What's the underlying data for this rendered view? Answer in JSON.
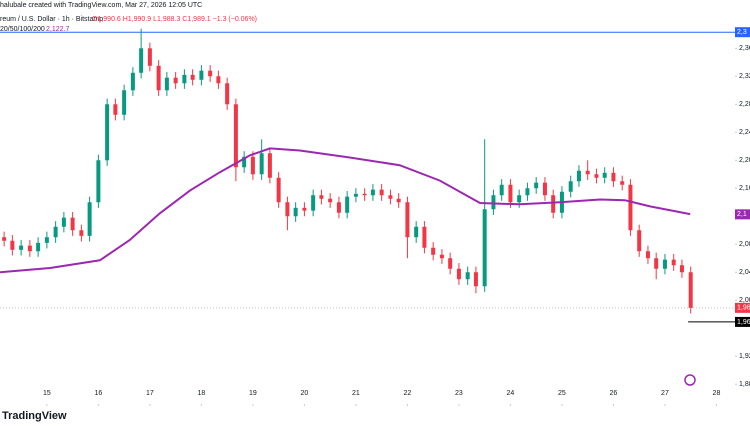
{
  "chart_data": {
    "type": "candlestick",
    "header": {
      "credit": "halubale created with TradingView.com, Mar 27, 2026 12:05 UTC",
      "symbol": "reum / U.S. Dollar · 1h · Bitstamp",
      "ohlc": "O1,990.6 H1,990.9 L1,988.3 C1,989.1 −1.3 (−0.06%)",
      "ma_name": "20/50/100/200",
      "ma_value": "2,122.7"
    },
    "branding": "TradingView",
    "up_color": "#089981",
    "down_color": "#f23645",
    "x": [
      14.17,
      14.33,
      14.5,
      14.67,
      14.83,
      15,
      15.17,
      15.33,
      15.5,
      15.67,
      15.83,
      16,
      16.17,
      16.33,
      16.5,
      16.67,
      16.83,
      17,
      17.17,
      17.33,
      17.5,
      17.67,
      17.83,
      18,
      18.17,
      18.33,
      18.5,
      18.67,
      18.83,
      19,
      19.17,
      19.33,
      19.5,
      19.67,
      19.83,
      20,
      20.17,
      20.33,
      20.5,
      20.67,
      20.83,
      21,
      21.17,
      21.33,
      21.5,
      21.67,
      21.83,
      22,
      22.17,
      22.33,
      22.5,
      22.67,
      22.83,
      23,
      23.17,
      23.33,
      23.5,
      23.67,
      23.83,
      24,
      24.17,
      24.33,
      24.5,
      24.67,
      24.83,
      25,
      25.17,
      25.33,
      25.5,
      25.67,
      25.83,
      26,
      26.17,
      26.33,
      26.5,
      26.67,
      26.83,
      27,
      27.17,
      27.33,
      27.5
    ],
    "open": [
      2090,
      2085,
      2072,
      2078,
      2070,
      2082,
      2090,
      2105,
      2118,
      2100,
      2092,
      2140,
      2200,
      2280,
      2265,
      2300,
      2325,
      2360,
      2335,
      2300,
      2318,
      2310,
      2322,
      2315,
      2328,
      2320,
      2310,
      2280,
      2190,
      2205,
      2180,
      2210,
      2175,
      2140,
      2120,
      2132,
      2128,
      2150,
      2145,
      2140,
      2125,
      2148,
      2152,
      2150,
      2158,
      2150,
      2145,
      2140,
      2090,
      2105,
      2075,
      2065,
      2060,
      2045,
      2030,
      2040,
      2020,
      2130,
      2150,
      2165,
      2140,
      2150,
      2160,
      2168,
      2150,
      2125,
      2155,
      2170,
      2185,
      2180,
      2175,
      2182,
      2170,
      2165,
      2100,
      2070,
      2060,
      2045,
      2058,
      2050,
      2040
    ],
    "high": [
      2098,
      2093,
      2086,
      2086,
      2090,
      2098,
      2113,
      2126,
      2126,
      2108,
      2148,
      2208,
      2288,
      2288,
      2308,
      2333,
      2388,
      2368,
      2343,
      2326,
      2326,
      2330,
      2330,
      2336,
      2336,
      2328,
      2318,
      2288,
      2213,
      2213,
      2230,
      2218,
      2183,
      2148,
      2140,
      2140,
      2158,
      2158,
      2153,
      2148,
      2156,
      2160,
      2160,
      2166,
      2166,
      2158,
      2153,
      2148,
      2113,
      2113,
      2083,
      2073,
      2068,
      2053,
      2048,
      2048,
      2230,
      2158,
      2173,
      2173,
      2158,
      2168,
      2176,
      2176,
      2158,
      2163,
      2178,
      2193,
      2200,
      2188,
      2190,
      2190,
      2178,
      2173,
      2108,
      2078,
      2068,
      2066,
      2066,
      2058,
      2048
    ],
    "low": [
      2077,
      2064,
      2064,
      2062,
      2062,
      2074,
      2082,
      2097,
      2092,
      2084,
      2084,
      2132,
      2192,
      2257,
      2257,
      2292,
      2317,
      2327,
      2292,
      2292,
      2302,
      2302,
      2307,
      2307,
      2312,
      2302,
      2272,
      2170,
      2182,
      2172,
      2172,
      2167,
      2132,
      2100,
      2112,
      2120,
      2120,
      2137,
      2132,
      2117,
      2117,
      2140,
      2142,
      2142,
      2142,
      2137,
      2132,
      2060,
      2082,
      2067,
      2057,
      2052,
      2037,
      2022,
      2022,
      2010,
      2012,
      2122,
      2142,
      2132,
      2132,
      2142,
      2152,
      2142,
      2117,
      2117,
      2147,
      2162,
      2172,
      2167,
      2167,
      2162,
      2157,
      2092,
      2062,
      2052,
      2030,
      2037,
      2042,
      2032,
      1981
    ],
    "close": [
      2085,
      2072,
      2078,
      2070,
      2082,
      2090,
      2105,
      2118,
      2100,
      2092,
      2140,
      2200,
      2280,
      2265,
      2300,
      2325,
      2360,
      2335,
      2300,
      2318,
      2310,
      2322,
      2315,
      2328,
      2320,
      2310,
      2280,
      2190,
      2205,
      2180,
      2210,
      2175,
      2140,
      2120,
      2132,
      2128,
      2150,
      2145,
      2140,
      2125,
      2148,
      2152,
      2150,
      2158,
      2150,
      2145,
      2140,
      2090,
      2105,
      2075,
      2065,
      2060,
      2045,
      2030,
      2040,
      2020,
      2130,
      2150,
      2165,
      2140,
      2150,
      2160,
      2168,
      2150,
      2125,
      2155,
      2170,
      2185,
      2180,
      2175,
      2182,
      2170,
      2165,
      2100,
      2070,
      2060,
      2045,
      2058,
      2050,
      2040,
      1989
    ],
    "ma": {
      "color": "#9c27b0",
      "x": [
        14.09,
        15.06,
        16.03,
        16.61,
        17.19,
        17.78,
        18.36,
        18.94,
        19.33,
        19.91,
        20.88,
        21.85,
        22.63,
        23.41,
        24.18,
        24.96,
        25.74,
        26.22,
        26.71,
        27.49
      ],
      "values": [
        2040,
        2046,
        2057,
        2086,
        2124,
        2157,
        2183,
        2207,
        2217,
        2214,
        2204,
        2193,
        2171,
        2139,
        2137,
        2140,
        2144,
        2143,
        2134,
        2123
      ]
    },
    "hlines": [
      {
        "value": 2383,
        "color": "#2962ff",
        "from": 14.09
      },
      {
        "value": 1969,
        "color": "#000000",
        "from": 27.45
      }
    ],
    "price_labels": [
      {
        "value": 2383,
        "label": "2,3",
        "color": "#2962ff"
      },
      {
        "value": 2122.7,
        "label": "2,1",
        "color": "#9c27b0"
      },
      {
        "value": 1989.1,
        "label": "1,98",
        "color": "#f23645"
      },
      {
        "value": 1969,
        "label": "1,96",
        "color": "#000000"
      }
    ],
    "xlim": [
      14.09,
      28.36
    ],
    "xticks": [
      15,
      16,
      17,
      18,
      19,
      20,
      21,
      22,
      23,
      24,
      25,
      26,
      27,
      28
    ],
    "ylim": [
      1846,
      2429
    ],
    "yticks": [
      {
        "value": 2360,
        "label": "2,36"
      },
      {
        "value": 2320,
        "label": "2,32"
      },
      {
        "value": 2280,
        "label": "2,28"
      },
      {
        "value": 2240,
        "label": "2,24"
      },
      {
        "value": 2200,
        "label": "2,20"
      },
      {
        "value": 2160,
        "label": "2,16"
      },
      {
        "value": 2080,
        "label": "2,08"
      },
      {
        "value": 2040,
        "label": "2,04"
      },
      {
        "value": 2000,
        "label": "2,00"
      },
      {
        "value": 1920,
        "label": "1,92"
      },
      {
        "value": 1880,
        "label": "1,88"
      }
    ]
  }
}
